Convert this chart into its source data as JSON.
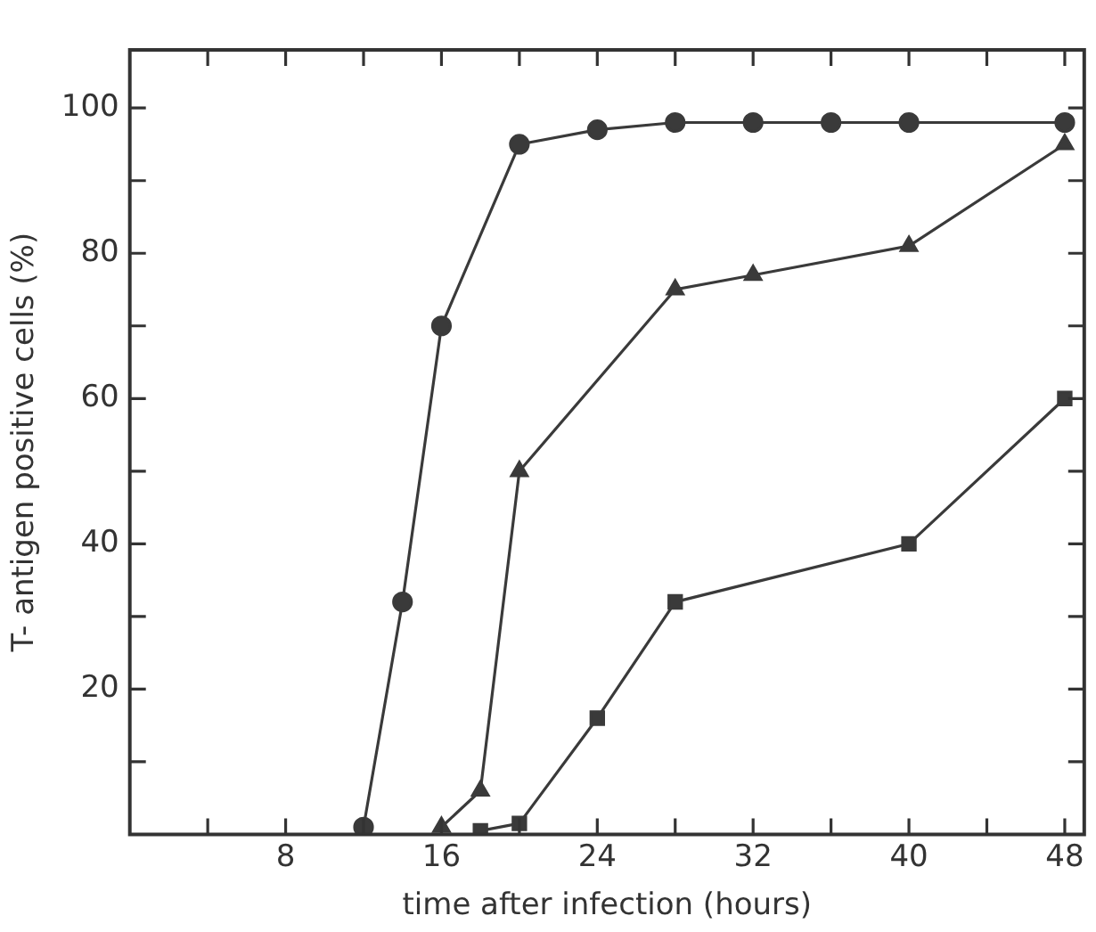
{
  "chart_data": {
    "type": "line",
    "xlabel": "time after infection (hours)",
    "ylabel": "T- antigen positive cells (%)",
    "xlim": [
      0,
      49
    ],
    "ylim": [
      0,
      108
    ],
    "xticks": [
      {
        "value": 4,
        "label": null
      },
      8,
      {
        "value": 12,
        "label": null
      },
      16,
      {
        "value": 20,
        "label": null
      },
      24,
      {
        "value": 28,
        "label": null
      },
      32,
      {
        "value": 36,
        "label": null
      },
      40,
      {
        "value": 44,
        "label": null
      },
      48
    ],
    "yticks": [
      {
        "value": 10,
        "label": null
      },
      20,
      {
        "value": 30,
        "label": null
      },
      40,
      {
        "value": 50,
        "label": null
      },
      60,
      {
        "value": 70,
        "label": null
      },
      80,
      {
        "value": 90,
        "label": null
      },
      100
    ],
    "grid": false,
    "legend": false,
    "line_style": "solid",
    "series": [
      {
        "color": "#3a3a3a",
        "marker": "circle",
        "x": [
          12,
          14,
          16,
          20,
          24,
          28,
          32,
          36,
          40,
          48
        ],
        "values": [
          1,
          32,
          70,
          95,
          97,
          98,
          98,
          98,
          98,
          98
        ]
      },
      {
        "color": "#3a3a3a",
        "marker": "triangle",
        "x": [
          16,
          18,
          20,
          28,
          32,
          40,
          48
        ],
        "values": [
          1,
          6,
          50,
          75,
          77,
          81,
          95
        ]
      },
      {
        "color": "#3a3a3a",
        "marker": "square",
        "x": [
          18,
          20,
          24,
          28,
          40,
          48
        ],
        "values": [
          0.5,
          1.5,
          16,
          32,
          40,
          60
        ]
      }
    ]
  }
}
